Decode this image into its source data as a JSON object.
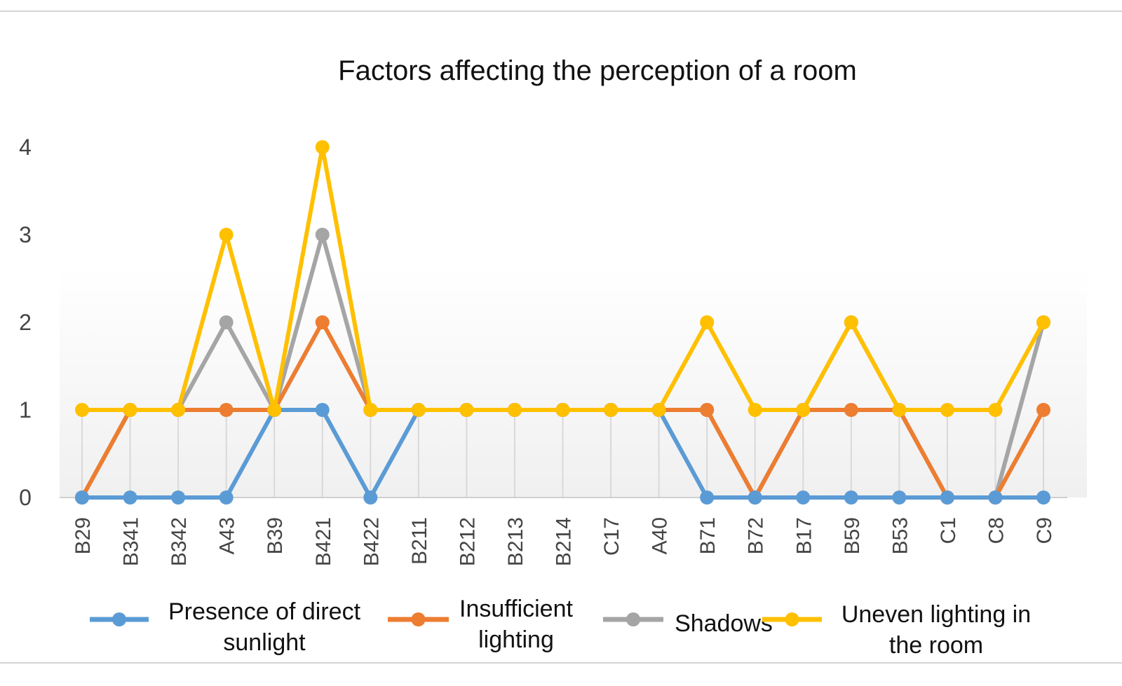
{
  "chart_data": {
    "type": "line",
    "title": "Factors affecting the perception of a room",
    "xlabel": "",
    "ylabel": "",
    "categories": [
      "B29",
      "B341",
      "B342",
      "A43",
      "B39",
      "B421",
      "B422",
      "B211",
      "B212",
      "B213",
      "B214",
      "C17",
      "A40",
      "B71",
      "B72",
      "B17",
      "B59",
      "B53",
      "C1",
      "C8",
      "C9"
    ],
    "yticks": [
      "0",
      "1",
      "2",
      "3",
      "4"
    ],
    "ylim": [
      0,
      4
    ],
    "grid": "vertical",
    "legend_position": "bottom",
    "series": [
      {
        "name_lines": [
          "Presence of direct",
          "sunlight"
        ],
        "color": "#5b9bd5",
        "values": [
          0,
          0,
          0,
          0,
          1,
          1,
          0,
          1,
          1,
          1,
          1,
          1,
          1,
          0,
          0,
          0,
          0,
          0,
          0,
          0,
          0
        ]
      },
      {
        "name_lines": [
          "Insufficient",
          "lighting"
        ],
        "color": "#ed7d31",
        "values": [
          0,
          1,
          1,
          1,
          1,
          2,
          1,
          1,
          1,
          1,
          1,
          1,
          1,
          1,
          0,
          1,
          1,
          1,
          0,
          0,
          1
        ]
      },
      {
        "name_lines": [
          "Shadows"
        ],
        "color": "#a5a5a5",
        "values": [
          0,
          1,
          1,
          2,
          1,
          3,
          1,
          1,
          1,
          1,
          1,
          1,
          1,
          1,
          0,
          1,
          2,
          1,
          0,
          0,
          2
        ]
      },
      {
        "name_lines": [
          "Uneven lighting in",
          "the room"
        ],
        "color": "#ffc000",
        "values": [
          1,
          1,
          1,
          3,
          1,
          4,
          1,
          1,
          1,
          1,
          1,
          1,
          1,
          2,
          1,
          1,
          2,
          1,
          1,
          1,
          2
        ]
      }
    ]
  }
}
